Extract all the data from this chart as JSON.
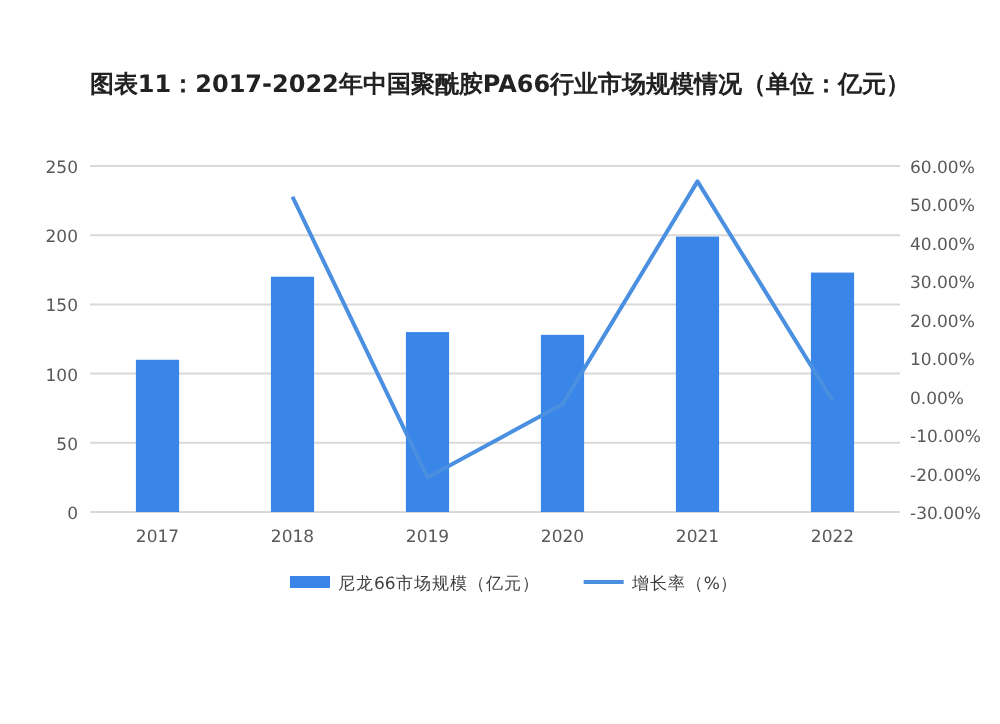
{
  "chart_data": {
    "type": "bar",
    "title": "图表11：2017-2022年中国聚酰胺PA66行业市场规模情况（单位：亿元）",
    "categories": [
      "2017",
      "2018",
      "2019",
      "2020",
      "2021",
      "2022"
    ],
    "series": [
      {
        "name": "尼龙66市场规模（亿元）",
        "color": "#3a86e8",
        "values": [
          110,
          170,
          130,
          128,
          199,
          173
        ]
      },
      {
        "name": "增长率（%）",
        "type": "line",
        "axis": "y2",
        "color": "#4a8fe0",
        "values": [
          null,
          52,
          -21,
          -2,
          56,
          -1
        ]
      }
    ],
    "ylim": [
      0,
      250
    ],
    "yticks": [
      0,
      50,
      100,
      150,
      200,
      250
    ],
    "y2lim": [
      -30,
      60
    ],
    "y2ticks": [
      {
        "value": -30,
        "label": "-30.00%"
      },
      {
        "value": -20,
        "label": "-20.00%"
      },
      {
        "value": -10,
        "label": "-10.00%"
      },
      {
        "value": 0,
        "label": "0.00%"
      },
      {
        "value": 10,
        "label": "10.00%"
      },
      {
        "value": 20,
        "label": "20.00%"
      },
      {
        "value": 30,
        "label": "30.00%"
      },
      {
        "value": 40,
        "label": "40.00%"
      },
      {
        "value": 50,
        "label": "50.00%"
      },
      {
        "value": 60,
        "label": "60.00%"
      }
    ],
    "grid": "y",
    "legend": "bottom",
    "marker": "none"
  }
}
